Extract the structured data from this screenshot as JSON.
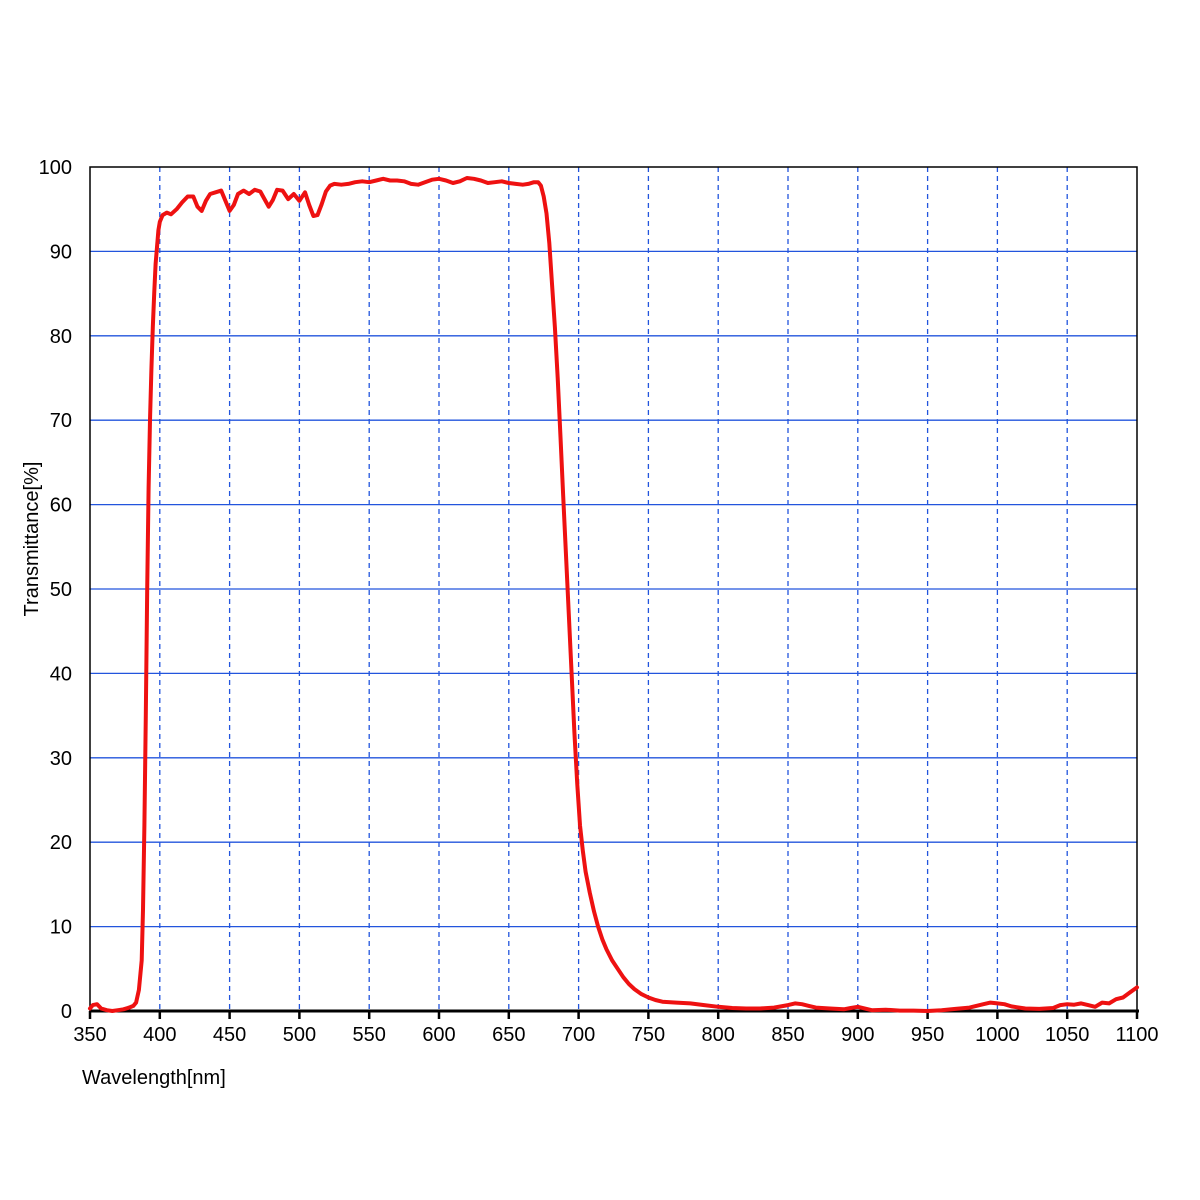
{
  "chart_data": {
    "type": "line",
    "title": "",
    "xlabel": "Wavelength[nm]",
    "ylabel": "Transmittance[%]",
    "xlim": [
      350,
      1100
    ],
    "ylim": [
      0,
      100
    ],
    "x_ticks": [
      350,
      400,
      450,
      500,
      550,
      600,
      650,
      700,
      750,
      800,
      850,
      900,
      950,
      1000,
      1050,
      1100
    ],
    "x_tick_labels": [
      "350",
      "400",
      "450",
      "500",
      "550",
      "600",
      "650",
      "700",
      "750",
      "800",
      "850",
      "900",
      "950",
      "1000",
      "1050",
      "1100"
    ],
    "y_ticks": [
      0,
      10,
      20,
      30,
      40,
      50,
      60,
      70,
      80,
      90,
      100
    ],
    "y_tick_labels": [
      "0",
      "10",
      "20",
      "30",
      "40",
      "50",
      "60",
      "70",
      "80",
      "90",
      "100"
    ],
    "grid": {
      "horizontal": "solid",
      "vertical": "dashed",
      "color": "#2255dd"
    },
    "legend": "none",
    "series": [
      {
        "color": "#ee1111",
        "x": [
          350,
          352,
          355,
          358,
          362,
          366,
          370,
          374,
          378,
          381,
          383,
          385,
          387,
          388,
          389,
          390,
          391,
          392,
          393,
          394,
          395,
          396,
          397,
          398,
          399,
          400,
          402,
          405,
          408,
          412,
          416,
          420,
          424,
          427,
          430,
          433,
          436,
          440,
          444,
          447,
          450,
          453,
          456,
          460,
          464,
          468,
          472,
          475,
          478,
          481,
          484,
          488,
          492,
          496,
          500,
          504,
          507,
          510,
          513,
          516,
          519,
          522,
          525,
          530,
          535,
          540,
          545,
          550,
          555,
          560,
          565,
          570,
          575,
          580,
          585,
          590,
          595,
          600,
          605,
          610,
          615,
          620,
          625,
          630,
          635,
          640,
          645,
          650,
          655,
          660,
          664,
          668,
          671,
          673,
          675,
          677,
          679,
          681,
          683,
          685,
          687,
          689,
          691,
          693,
          695,
          697,
          699,
          701,
          703,
          705,
          708,
          711,
          714,
          717,
          720,
          724,
          728,
          732,
          736,
          740,
          745,
          750,
          755,
          760,
          770,
          780,
          790,
          800,
          810,
          820,
          830,
          840,
          850,
          855,
          860,
          865,
          870,
          880,
          890,
          895,
          900,
          910,
          920,
          930,
          940,
          950,
          955,
          960,
          970,
          980,
          990,
          995,
          1000,
          1005,
          1010,
          1020,
          1030,
          1040,
          1045,
          1050,
          1055,
          1060,
          1065,
          1070,
          1075,
          1080,
          1085,
          1090,
          1095,
          1100
        ],
        "y": [
          0.3,
          0.7,
          0.8,
          0.3,
          0.1,
          0.0,
          0.1,
          0.2,
          0.4,
          0.6,
          1.0,
          2.5,
          6.0,
          12.0,
          22.0,
          35.0,
          50.0,
          62.0,
          70.0,
          76.0,
          81.0,
          85.0,
          88.5,
          90.5,
          92.5,
          93.5,
          94.3,
          94.6,
          94.4,
          95.0,
          95.8,
          96.5,
          96.5,
          95.3,
          94.8,
          96.0,
          96.8,
          97.0,
          97.2,
          96.0,
          94.8,
          95.5,
          96.8,
          97.2,
          96.8,
          97.3,
          97.1,
          96.2,
          95.3,
          96.1,
          97.3,
          97.2,
          96.2,
          96.8,
          96.0,
          97.0,
          95.5,
          94.2,
          94.3,
          95.6,
          97.1,
          97.8,
          98.0,
          97.9,
          98.0,
          98.2,
          98.3,
          98.2,
          98.4,
          98.6,
          98.4,
          98.4,
          98.3,
          98.0,
          97.9,
          98.2,
          98.5,
          98.6,
          98.4,
          98.1,
          98.3,
          98.7,
          98.6,
          98.4,
          98.1,
          98.2,
          98.3,
          98.1,
          98.0,
          97.9,
          98.0,
          98.2,
          98.2,
          97.8,
          96.5,
          94.5,
          91.0,
          86.0,
          81.0,
          75.0,
          68.0,
          61.0,
          54.0,
          47.0,
          40.0,
          33.0,
          27.0,
          22.0,
          19.0,
          16.5,
          14.0,
          11.8,
          10.0,
          8.5,
          7.3,
          6.0,
          5.0,
          4.0,
          3.2,
          2.6,
          2.0,
          1.6,
          1.3,
          1.1,
          1.0,
          0.9,
          0.7,
          0.5,
          0.35,
          0.3,
          0.3,
          0.4,
          0.7,
          0.9,
          0.8,
          0.6,
          0.4,
          0.3,
          0.2,
          0.35,
          0.5,
          0.1,
          0.15,
          0.05,
          0.05,
          0.0,
          0.05,
          0.1,
          0.25,
          0.4,
          0.8,
          1.0,
          0.9,
          0.8,
          0.55,
          0.3,
          0.25,
          0.35,
          0.7,
          0.8,
          0.75,
          0.9,
          0.7,
          0.5,
          1.0,
          0.9,
          1.4,
          1.6,
          2.2,
          2.8
        ]
      }
    ]
  }
}
